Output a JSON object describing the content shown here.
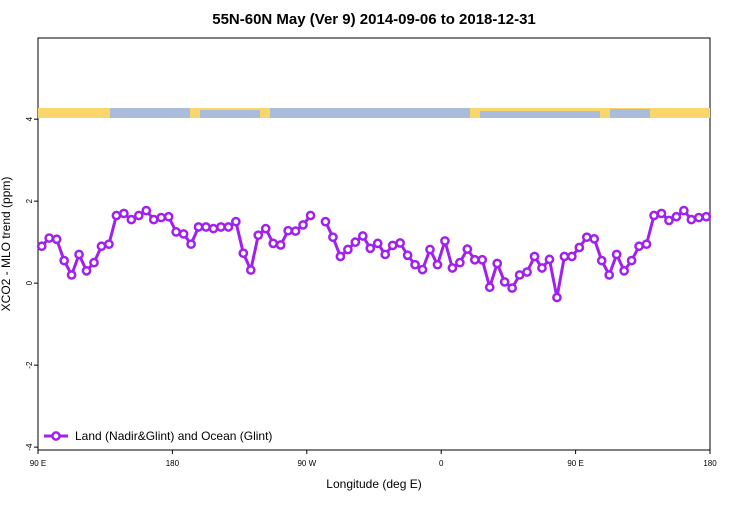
{
  "chart_data": {
    "type": "line",
    "title": "55N-60N May (Ver 9)   2014-09-06 to 2018-12-31",
    "x_label": "Longitude (deg E)",
    "y_label": "XCO2 - MLO trend (ppm)",
    "xlim": [
      90,
      540
    ],
    "xticks": [
      {
        "value": 90,
        "label": "90 E"
      },
      180,
      {
        "value": 270,
        "label": "90 W"
      },
      {
        "value": 360,
        "label": "0"
      },
      {
        "value": 450,
        "label": "90 E"
      },
      {
        "value": 540,
        "label": "180"
      }
    ],
    "ylim": [
      -4.07,
      5.98
    ],
    "yticks": [
      -4,
      -2,
      0,
      2,
      4
    ],
    "legend": "bottom-left",
    "x": [
      92.5,
      97.5,
      102.5,
      107.5,
      112.5,
      117.5,
      122.5,
      127.5,
      132.5,
      137.5,
      142.5,
      147.5,
      152.5,
      157.5,
      162.5,
      167.5,
      172.5,
      177.5,
      182.5,
      187.5,
      192.5,
      197.5,
      202.5,
      207.5,
      212.5,
      217.5,
      222.5,
      227.5,
      232.5,
      237.5,
      242.5,
      247.5,
      252.5,
      257.5,
      262.5,
      267.5,
      272.5,
      277.5,
      282.5,
      287.5,
      292.5,
      297.5,
      302.5,
      307.5,
      312.5,
      317.5,
      322.5,
      327.5,
      332.5,
      337.5,
      342.5,
      347.5,
      352.5,
      357.5,
      362.5,
      367.5,
      372.5,
      377.5,
      382.5,
      387.5,
      392.5,
      397.5,
      402.5,
      407.5,
      412.5,
      417.5,
      422.5,
      427.5,
      432.5,
      437.5,
      442.5,
      447.5,
      452.5,
      457.5,
      462.5,
      467.5,
      472.5,
      477.5,
      482.5,
      487.5,
      492.5,
      497.5,
      502.5,
      507.5,
      512.5,
      517.5,
      522.5,
      527.5,
      532.5,
      537.5
    ],
    "series": [
      {
        "name": "Land (Nadir&Glint) and Ocean (Glint)",
        "color": "#a020f0",
        "values": [
          0.9,
          1.1,
          1.07,
          0.55,
          0.2,
          0.7,
          0.3,
          0.5,
          0.9,
          0.95,
          1.65,
          1.7,
          1.55,
          1.65,
          1.77,
          1.55,
          1.6,
          1.62,
          1.25,
          1.2,
          0.95,
          1.37,
          1.37,
          1.33,
          1.37,
          1.37,
          1.5,
          0.73,
          0.32,
          1.17,
          1.33,
          0.97,
          0.93,
          1.28,
          1.27,
          1.42,
          1.65,
          null,
          1.5,
          1.12,
          0.65,
          0.82,
          1.0,
          1.15,
          0.85,
          0.97,
          0.7,
          0.92,
          0.98,
          0.68,
          0.45,
          0.33,
          0.82,
          0.45,
          1.03,
          0.37,
          0.5,
          0.83,
          0.57,
          0.57,
          -0.1,
          0.48,
          0.03,
          -0.12,
          0.2,
          0.27,
          0.65,
          0.37,
          0.58,
          -0.35,
          0.65,
          0.65,
          0.87,
          1.12,
          1.08,
          0.55,
          0.2,
          0.7,
          0.3,
          0.55,
          0.9,
          0.95,
          1.65,
          1.7,
          1.53,
          1.62,
          1.77,
          1.55,
          1.6,
          1.62
        ]
      }
    ]
  }
}
